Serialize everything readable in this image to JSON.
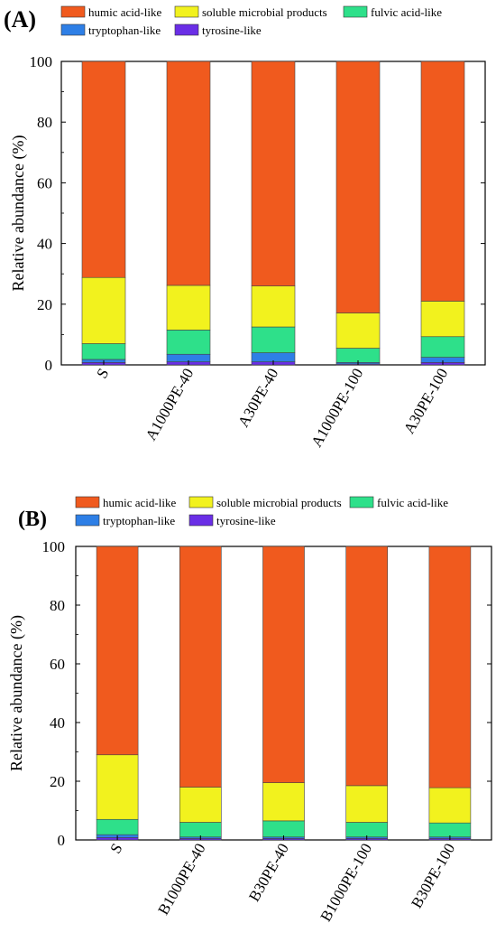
{
  "colors": {
    "humic": "#F05A1E",
    "smp": "#F2F21E",
    "fulvic": "#2EE08A",
    "tryptophan": "#2E7FE6",
    "tyrosine": "#6A2EE6"
  },
  "chart_data": [
    {
      "type": "bar",
      "panel_label": "(A)",
      "stacked": true,
      "ylabel": "Relative abundance (%)",
      "ylim": [
        0,
        100
      ],
      "yticks": [
        "0",
        "20",
        "40",
        "60",
        "80",
        "100"
      ],
      "categories": [
        "S",
        "A1000PE-40",
        "A30PE-40",
        "A1000PE-100",
        "A30PE-100"
      ],
      "legend": [
        "humic acid-like",
        "soluble microbial products",
        "fulvic acid-like",
        "tryptophan-like",
        "tyrosine-like"
      ],
      "series": [
        {
          "name": "tyrosine-like",
          "color_key": "tyrosine",
          "values": [
            0.8,
            1.0,
            1.0,
            0.3,
            0.8
          ]
        },
        {
          "name": "tryptophan-like",
          "color_key": "tryptophan",
          "values": [
            1.0,
            2.5,
            3.0,
            0.5,
            1.7
          ]
        },
        {
          "name": "fulvic acid-like",
          "color_key": "fulvic",
          "values": [
            5.2,
            8.0,
            8.5,
            4.7,
            6.8
          ]
        },
        {
          "name": "soluble microbial products",
          "color_key": "smp",
          "values": [
            21.8,
            14.7,
            13.5,
            11.6,
            11.7
          ]
        },
        {
          "name": "humic acid-like",
          "color_key": "humic",
          "values": [
            71.2,
            73.8,
            74.0,
            82.9,
            79.0
          ]
        }
      ]
    },
    {
      "type": "bar",
      "panel_label": "(B)",
      "stacked": true,
      "ylabel": "Relative abundance (%)",
      "ylim": [
        0,
        100
      ],
      "yticks": [
        "0",
        "20",
        "40",
        "60",
        "80",
        "100"
      ],
      "categories": [
        "S",
        "B1000PE-40",
        "B30PE-40",
        "B1000PE-100",
        "B30PE-100"
      ],
      "legend": [
        "humic acid-like",
        "soluble microbial products",
        "fulvic acid-like",
        "tryptophan-like",
        "tyrosine-like"
      ],
      "series": [
        {
          "name": "tyrosine-like",
          "color_key": "tyrosine",
          "values": [
            0.8,
            0.5,
            0.5,
            0.5,
            0.5
          ]
        },
        {
          "name": "tryptophan-like",
          "color_key": "tryptophan",
          "values": [
            1.0,
            0.5,
            0.5,
            0.5,
            0.5
          ]
        },
        {
          "name": "fulvic acid-like",
          "color_key": "fulvic",
          "values": [
            5.2,
            5.0,
            5.5,
            5.0,
            4.8
          ]
        },
        {
          "name": "soluble microbial products",
          "color_key": "smp",
          "values": [
            22.0,
            12.0,
            13.0,
            12.5,
            12.0
          ]
        },
        {
          "name": "humic acid-like",
          "color_key": "humic",
          "values": [
            71.0,
            82.0,
            80.5,
            81.5,
            82.2
          ]
        }
      ]
    }
  ]
}
